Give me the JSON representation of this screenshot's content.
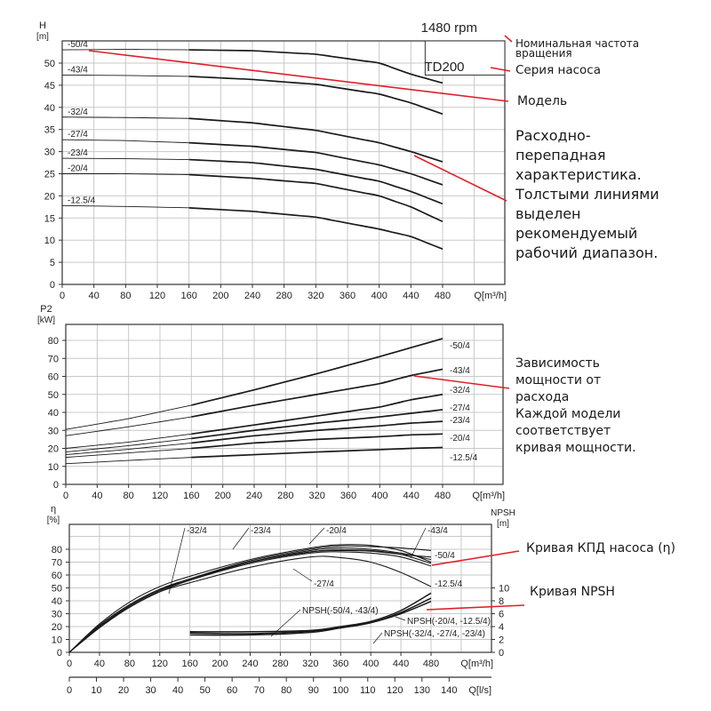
{
  "chart_data": [
    {
      "type": "line",
      "ylabel": "H",
      "yunit": "[m]",
      "xlabel": "Q[m³/h]",
      "xticks": [
        0,
        40,
        80,
        120,
        160,
        200,
        240,
        280,
        320,
        360,
        400,
        440,
        480
      ],
      "yticks": [
        0,
        5,
        10,
        15,
        20,
        25,
        30,
        35,
        40,
        45,
        50
      ],
      "xlim": [
        0,
        560
      ],
      "ylim": [
        0,
        55
      ],
      "grid": true,
      "recommended_range": [
        160,
        480
      ],
      "x": [
        0,
        80,
        160,
        240,
        320,
        400,
        440,
        480
      ],
      "series": [
        {
          "name": "-50/4",
          "values": [
            53,
            53.1,
            53,
            52.8,
            52,
            50,
            47.5,
            45.5
          ]
        },
        {
          "name": "-43/4",
          "values": [
            47.3,
            47.2,
            47,
            46.3,
            45.2,
            43,
            41,
            38.5
          ]
        },
        {
          "name": "-32/4",
          "values": [
            37.8,
            37.7,
            37.5,
            36.5,
            34.8,
            32,
            30,
            27.7
          ]
        },
        {
          "name": "-27/4",
          "values": [
            32.7,
            32.5,
            32,
            31.2,
            29.8,
            27,
            25,
            22.5
          ]
        },
        {
          "name": "-23/4",
          "values": [
            28.5,
            28.4,
            28.2,
            27.5,
            26,
            23.3,
            21,
            18.2
          ]
        },
        {
          "name": "-20/4",
          "values": [
            25,
            25,
            24.8,
            24,
            22.8,
            20,
            17.5,
            14.2
          ]
        },
        {
          "name": "-12.5/4",
          "values": [
            17.8,
            17.6,
            17.3,
            16.5,
            15.2,
            12.5,
            10.8,
            8
          ]
        }
      ],
      "series_label": "TD200",
      "speed": "1480 rpm"
    },
    {
      "type": "line",
      "ylabel": "P2",
      "yunit": "[kW]",
      "xlabel": "Q[m³/h]",
      "xticks": [
        0,
        40,
        80,
        120,
        160,
        200,
        240,
        280,
        320,
        360,
        400,
        440,
        480
      ],
      "yticks": [
        0,
        10,
        20,
        30,
        40,
        50,
        60,
        70,
        80
      ],
      "xlim": [
        0,
        560
      ],
      "ylim": [
        0,
        90
      ],
      "grid": true,
      "recommended_range": [
        160,
        480
      ],
      "x": [
        0,
        80,
        160,
        240,
        320,
        400,
        440,
        480
      ],
      "series": [
        {
          "name": "-50/4",
          "values": [
            30.5,
            36.5,
            44,
            52.5,
            61.5,
            71,
            76,
            81
          ]
        },
        {
          "name": "-43/4",
          "values": [
            27,
            32,
            37.5,
            44,
            50,
            56,
            60.5,
            64
          ]
        },
        {
          "name": "-32/4",
          "values": [
            20,
            23.5,
            28,
            33,
            38,
            43,
            47,
            50
          ]
        },
        {
          "name": "-27/4",
          "values": [
            18,
            21.5,
            25.5,
            30,
            34,
            37.5,
            39.5,
            41.5
          ]
        },
        {
          "name": "-23/4",
          "values": [
            16.5,
            19.5,
            23,
            27,
            30,
            32.5,
            34,
            35
          ]
        },
        {
          "name": "-20/4",
          "values": [
            15,
            17.5,
            20,
            23,
            25,
            26.5,
            27.5,
            28
          ]
        },
        {
          "name": "-12.5/4",
          "values": [
            11.5,
            13.3,
            15,
            16.5,
            18,
            19.3,
            20,
            20.5
          ]
        }
      ]
    },
    {
      "type": "line",
      "ylabel": "η",
      "yunit": "[%]",
      "y2label": "NPSH",
      "y2unit": "[m]",
      "xlabel": "Q[m³/h]",
      "x2label": "Q[l/s]",
      "xticks": [
        0,
        40,
        80,
        120,
        160,
        200,
        240,
        280,
        320,
        360,
        400,
        440,
        480
      ],
      "x2ticks": [
        0,
        10,
        20,
        30,
        40,
        50,
        60,
        70,
        80,
        90,
        100,
        110,
        120,
        130,
        140
      ],
      "yticks": [
        0,
        10,
        20,
        30,
        40,
        50,
        60,
        70,
        80
      ],
      "y2ticks": [
        0,
        2,
        4,
        6,
        8,
        10
      ],
      "xlim": [
        0,
        560
      ],
      "ylim": [
        0,
        100
      ],
      "grid": true,
      "x": [
        0,
        40,
        80,
        120,
        160,
        240,
        320,
        360,
        400,
        440,
        480
      ],
      "efficiency_series": [
        {
          "name": "-43/4",
          "values": [
            0,
            20,
            36,
            48,
            57,
            71,
            80,
            82.5,
            82,
            81,
            79
          ]
        },
        {
          "name": "-50/4",
          "values": [
            0,
            19,
            35,
            47,
            56,
            70,
            79,
            81,
            80,
            77,
            72
          ]
        },
        {
          "name": "-32/4",
          "values": [
            0,
            22,
            39,
            51,
            59,
            72,
            81,
            83.5,
            83,
            79,
            70
          ]
        },
        {
          "name": "-23/4",
          "values": [
            0,
            21,
            37,
            49,
            57,
            70,
            78,
            79.5,
            79,
            76,
            69
          ]
        },
        {
          "name": "-20/4",
          "values": [
            0,
            20,
            36,
            48,
            56,
            69,
            77,
            78,
            77,
            74,
            67
          ]
        },
        {
          "name": "-27/4",
          "values": [
            0,
            21,
            37,
            49,
            57,
            70,
            78,
            79,
            78.5,
            76,
            74
          ]
        },
        {
          "name": "-12.5/4",
          "values": [
            0,
            20,
            35,
            47,
            54,
            66,
            74,
            73.5,
            70,
            62,
            51
          ]
        }
      ],
      "npsh_x": [
        160,
        240,
        320,
        360,
        400,
        440,
        480
      ],
      "npsh_series": [
        {
          "name": "NPSH(-50/4, -43/4)",
          "values": [
            3.2,
            3.2,
            3.4,
            4,
            4.8,
            6.5,
            9.2
          ]
        },
        {
          "name": "NPSH(-20/4, -12.5/4)",
          "values": [
            3.0,
            2.9,
            3.3,
            3.8,
            4.6,
            6.2,
            8.4
          ]
        },
        {
          "name": "NPSH(-32/4, -27/4, -23/4)",
          "values": [
            2.7,
            2.7,
            3.1,
            3.8,
            4.6,
            6,
            7.9
          ]
        }
      ]
    }
  ],
  "annotations": {
    "speed_note": [
      "Номинальная частота",
      "вращения"
    ],
    "series_note": "Серия насоса",
    "model_note": "Модель",
    "qh_note": [
      "Расходно-",
      "перепадная",
      "характеристика.",
      "Толстыми линиями",
      "выделен",
      "рекомендуемый",
      "рабочий диапазон."
    ],
    "power_note": [
      "Зависимость",
      "мощности от",
      "расхода",
      "Каждой модели",
      "соответствует",
      "кривая мощности."
    ],
    "eff_note": "Кривая КПД насоса (η)",
    "npsh_note": "Кривая NPSH"
  },
  "colors": {
    "curve": "#1a1a1a",
    "grid": "#c8c8c8",
    "axis": "#333333",
    "leader": "#e0202a"
  }
}
